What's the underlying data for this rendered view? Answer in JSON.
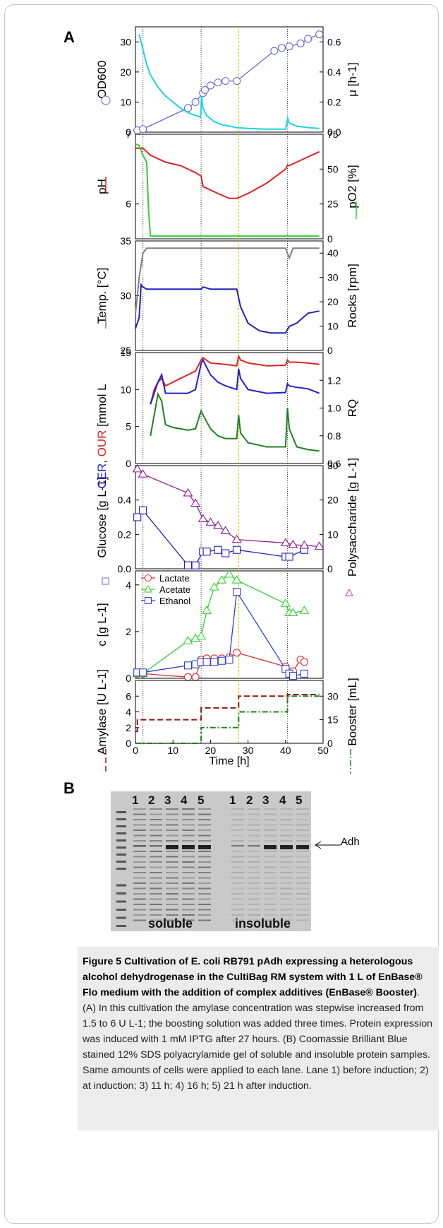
{
  "panel_a_letter": "A",
  "panel_b_letter": "B",
  "chart_data": [
    {
      "type": "line",
      "subplot": "OD / growth rate",
      "xlim": [
        0,
        50
      ],
      "ylim_left": [
        0,
        35
      ],
      "ylim_right": [
        0,
        0.7
      ],
      "ylabel_left": "OD600",
      "ylabel_right": "μ [h-1]",
      "left_ticks": [
        "0",
        "10",
        "20",
        "30"
      ],
      "right_ticks": [
        "0.0",
        "0.2",
        "0.4",
        "0.6"
      ],
      "series": [
        {
          "name": "OD600",
          "marker": "circle",
          "color": "#6a6ad0",
          "x": [
            0.5,
            2,
            14,
            16,
            18,
            18.5,
            20,
            22,
            24,
            27,
            37,
            39,
            41,
            44,
            46,
            49
          ],
          "y": [
            0.6,
            1,
            8,
            10,
            13,
            14,
            15.5,
            16.5,
            17,
            17,
            27,
            28,
            28.5,
            29.5,
            31,
            32.5
          ]
        },
        {
          "name": "μ",
          "color": "#1ad6e0",
          "x": [
            1,
            2,
            3,
            4,
            6,
            8,
            10,
            12,
            14,
            16,
            17.4,
            17.6,
            18,
            19,
            21,
            23,
            25,
            27,
            30,
            35,
            40,
            40.6,
            41,
            43,
            46,
            49
          ],
          "y": [
            0.65,
            0.55,
            0.45,
            0.38,
            0.3,
            0.24,
            0.2,
            0.16,
            0.13,
            0.11,
            0.1,
            0.24,
            0.16,
            0.11,
            0.07,
            0.05,
            0.04,
            0.03,
            0.025,
            0.02,
            0.02,
            0.09,
            0.06,
            0.04,
            0.03,
            0.025
          ]
        }
      ]
    },
    {
      "type": "line",
      "subplot": "pH / pO2",
      "xlim": [
        0,
        50
      ],
      "ylim_left": [
        5.5,
        7.0
      ],
      "ylim_right": [
        0,
        75
      ],
      "ylabel_left": "pH",
      "ylabel_right": "pO2 [%]",
      "left_ticks": [
        "6",
        "7"
      ],
      "right_ticks": [
        "0",
        "25",
        "50",
        "75"
      ],
      "series": [
        {
          "name": "pH",
          "color": "#e02020",
          "x": [
            0,
            2,
            4,
            8,
            12,
            16,
            17.5,
            18,
            22,
            25,
            27,
            30,
            35,
            40,
            40.5,
            41,
            45,
            49
          ],
          "y": [
            6.8,
            6.8,
            6.7,
            6.6,
            6.55,
            6.45,
            6.4,
            6.25,
            6.15,
            6.08,
            6.08,
            6.15,
            6.3,
            6.5,
            6.55,
            6.55,
            6.65,
            6.75
          ]
        },
        {
          "name": "pO2",
          "color": "#30d030",
          "x": [
            0,
            1,
            2,
            3,
            3.5,
            4,
            5,
            10,
            20,
            30,
            40,
            49
          ],
          "y": [
            68,
            67,
            60,
            55,
            20,
            2,
            2,
            2,
            2,
            2,
            2,
            2
          ]
        }
      ]
    },
    {
      "type": "line",
      "subplot": "Temperature / Rocks",
      "xlim": [
        0,
        50
      ],
      "ylim_left": [
        25,
        35
      ],
      "ylim_right": [
        0,
        45
      ],
      "ylabel_left": "Temp. [°C]",
      "ylabel_right": "Rocks [rpm]",
      "left_ticks": [
        "25",
        "30",
        "35"
      ],
      "right_ticks": [
        "0",
        "10",
        "20",
        "30",
        "40"
      ],
      "series": [
        {
          "name": "Temp.",
          "color": "#2020c0",
          "x": [
            0,
            1,
            1.5,
            2,
            3,
            5,
            10,
            15,
            17.5,
            18,
            20,
            25,
            27,
            28,
            30,
            33,
            36,
            40,
            41,
            43,
            46,
            49
          ],
          "y": [
            27,
            28,
            31,
            30.8,
            30.6,
            30.6,
            30.6,
            30.6,
            30.6,
            30.8,
            30.6,
            30.6,
            30.6,
            29,
            27.5,
            26.8,
            26.6,
            26.6,
            27.2,
            27.5,
            28.4,
            28.6
          ]
        },
        {
          "name": "Rocks",
          "color": "#808080",
          "x": [
            0,
            1,
            2,
            3,
            10,
            20,
            30,
            40,
            41,
            42,
            43,
            49
          ],
          "y": [
            15,
            30,
            40,
            42,
            42,
            42,
            42,
            42,
            38,
            42,
            42,
            42
          ]
        }
      ]
    },
    {
      "type": "line",
      "subplot": "CER / OUR / RQ",
      "xlim": [
        0,
        50
      ],
      "ylim_left": [
        0,
        15
      ],
      "ylim_right": [
        0.6,
        1.4
      ],
      "ylabel_left": "CER, OUR [mmol L-1h-1]",
      "ylabel_right": "RQ",
      "left_ticks": [
        "0",
        "5",
        "10",
        "15"
      ],
      "right_ticks": [
        "0.6",
        "0.8",
        "1.0",
        "1.2"
      ],
      "series": [
        {
          "name": "OUR",
          "color": "#e02020",
          "x": [
            4,
            5,
            6,
            7,
            8,
            10,
            12,
            14,
            16,
            17.5,
            18,
            20,
            22,
            24,
            27,
            27.5,
            28,
            30,
            35,
            40,
            40.5,
            41,
            43,
            46,
            49
          ],
          "y": [
            8,
            10,
            11,
            11.5,
            10.5,
            11,
            11.5,
            12,
            12.5,
            14,
            14.3,
            13.6,
            13.5,
            13.4,
            13.2,
            14.5,
            14,
            13.6,
            13.2,
            13.3,
            14,
            13.7,
            13.7,
            13.6,
            13.4
          ]
        },
        {
          "name": "CER",
          "color": "#2020d0",
          "x": [
            4,
            5,
            6,
            7,
            8,
            10,
            12,
            14,
            16,
            17.5,
            18,
            20,
            22,
            24,
            27,
            27.5,
            28,
            30,
            35,
            40,
            40.5,
            41,
            43,
            46,
            49
          ],
          "y": [
            8,
            9.5,
            11,
            12,
            9.5,
            9.5,
            9.5,
            9.5,
            10,
            13.5,
            14,
            12,
            11,
            10.5,
            10,
            12.8,
            11.5,
            10,
            9.5,
            9.6,
            10.8,
            10.5,
            10.3,
            10.1,
            9.5
          ]
        },
        {
          "name": "RQ",
          "color": "#208020",
          "x": [
            4,
            5,
            6,
            7,
            8,
            10,
            12,
            14,
            16,
            17.5,
            18,
            20,
            22,
            24,
            27,
            27.5,
            28,
            30,
            35,
            40,
            40.5,
            41,
            43,
            46,
            49
          ],
          "y": [
            0.8,
            0.95,
            1.1,
            1.05,
            0.88,
            0.86,
            0.85,
            0.84,
            0.85,
            0.98,
            0.95,
            0.85,
            0.8,
            0.78,
            0.78,
            0.95,
            0.82,
            0.75,
            0.72,
            0.72,
            1.0,
            0.85,
            0.72,
            0.7,
            0.69
          ]
        }
      ]
    },
    {
      "type": "line",
      "subplot": "Glucose / Polysaccharide",
      "xlim": [
        0,
        50
      ],
      "ylim_left": [
        0,
        0.6
      ],
      "ylim_right": [
        0,
        30
      ],
      "ylabel_left": "Glucose [g L-1]",
      "ylabel_right": "Polysaccharide [g L-1]",
      "left_ticks": [
        "0.0",
        "0.2",
        "0.4"
      ],
      "right_ticks": [
        "0",
        "10",
        "20",
        "30"
      ],
      "series": [
        {
          "name": "Glucose",
          "marker": "square",
          "color": "#2020c0",
          "x": [
            0.5,
            2,
            14,
            16,
            18,
            19,
            22,
            24,
            27,
            40,
            41,
            45
          ],
          "y": [
            0.3,
            0.34,
            0.02,
            0.02,
            0.1,
            0.1,
            0.11,
            0.09,
            0.11,
            0.07,
            0.07,
            0.11
          ]
        },
        {
          "name": "Polysaccharide",
          "marker": "triangle",
          "color": "#8a2090",
          "x": [
            0.5,
            2,
            14,
            16,
            18,
            20,
            22,
            24,
            27,
            40,
            42,
            45,
            49
          ],
          "y": [
            29,
            27.5,
            22,
            19,
            14.5,
            13.5,
            12.5,
            11,
            8.5,
            7.5,
            7,
            6.8,
            6.5
          ]
        }
      ]
    },
    {
      "type": "line",
      "subplot": "Metabolites",
      "xlim": [
        0,
        50
      ],
      "ylim_left": [
        0,
        4.6
      ],
      "ylabel_left": "c [g L-1]",
      "left_ticks": [
        "0",
        "2",
        "4"
      ],
      "legend": [
        "Lactate",
        "Acetate",
        "Ethanol"
      ],
      "series": [
        {
          "name": "Lactate",
          "marker": "circle",
          "color": "#e03030",
          "x": [
            0.5,
            2,
            14,
            16,
            17.5,
            19,
            21,
            23,
            25,
            27,
            40,
            42,
            44,
            45
          ],
          "y": [
            0.2,
            0.2,
            0.05,
            0.05,
            0.8,
            0.85,
            0.85,
            0.85,
            0.9,
            1.1,
            0.5,
            0.3,
            0.8,
            0.7
          ]
        },
        {
          "name": "Acetate",
          "marker": "triangle",
          "color": "#30d030",
          "x": [
            0.5,
            2,
            14,
            16,
            17.5,
            19,
            21,
            23,
            25,
            27,
            40,
            41,
            42,
            45
          ],
          "y": [
            0.2,
            0.2,
            1.6,
            1.7,
            1.8,
            2.9,
            3.9,
            4.2,
            4.45,
            4.2,
            3.2,
            2.8,
            2.8,
            2.9
          ]
        },
        {
          "name": "Ethanol",
          "marker": "square",
          "color": "#3040d0",
          "x": [
            0.5,
            2,
            14,
            16,
            17.5,
            19,
            21,
            23,
            25,
            27,
            40,
            41,
            42,
            45
          ],
          "y": [
            0.25,
            0.25,
            0.55,
            0.6,
            0.7,
            0.7,
            0.7,
            0.75,
            0.8,
            3.7,
            0.4,
            0.2,
            0.1,
            0.2
          ]
        }
      ]
    },
    {
      "type": "line",
      "subplot": "Amylase / Booster",
      "xlim": [
        0,
        50
      ],
      "ylim_left": [
        0,
        8
      ],
      "ylim_right": [
        0,
        40
      ],
      "ylabel_left": "Amylase [U L-1]",
      "ylabel_right": "Booster [mL]",
      "left_ticks": [
        "0",
        "2",
        "4",
        "6"
      ],
      "right_ticks": [
        "0",
        "15",
        "30"
      ],
      "xlabel": "Time [h]",
      "x_ticks": [
        "0",
        "10",
        "20",
        "30",
        "40",
        "50"
      ],
      "series": [
        {
          "name": "Amylase",
          "color": "#901818",
          "dash": "dashed",
          "x": [
            0,
            0.5,
            0.5,
            17.5,
            17.5,
            27.5,
            27.5,
            40.5,
            40.5,
            49
          ],
          "y": [
            1.5,
            1.5,
            3,
            3,
            4.5,
            4.5,
            6,
            6,
            6.2,
            6.2
          ]
        },
        {
          "name": "Booster",
          "color": "#208020",
          "dash": "dashdot",
          "x": [
            0,
            17.5,
            17.5,
            27.5,
            27.5,
            40.5,
            40.5,
            49
          ],
          "y": [
            0,
            0,
            10,
            10,
            20,
            20,
            30,
            30
          ]
        }
      ]
    }
  ],
  "cer_label": "CER,",
  "our_label": "OUR",
  "cer_rest_label": "[mmol L",
  "metab_legend_symbol_circle": "○",
  "metab_legend_symbol_triangle": "△",
  "metab_legend_symbol_square": "□",
  "gel": {
    "lanes_soluble": [
      "1",
      "2",
      "3",
      "4",
      "5"
    ],
    "lanes_insoluble": [
      "1",
      "2",
      "3",
      "4",
      "5"
    ],
    "soluble_label": "soluble",
    "insoluble_label": "insoluble",
    "adh_label": "Adh"
  },
  "caption": {
    "title": "Figure 5 Cultivation of E. coli RB791 pAdh expressing a heterologous alcohol dehydrogenase in the CultiBag RM system with 1 L of EnBase® Flo medium with the addition of complex additives (EnBase® Booster)",
    "body": ". (A) In this cultivation the amylase concentration was stepwise increased from 1.5 to 6 U L-1; the boosting solution was added three times. Protein expression was induced with 1 mM IPTG after 27 hours. (B) Coomassie Brilliant Blue stained 12% SDS polyacrylamide gel of soluble and insoluble protein samples. Same amounts of cells were applied to each lane. Lane 1) before induction; 2) at induction; 3) 11 h; 4) 16 h; 5) 21 h after induction."
  }
}
